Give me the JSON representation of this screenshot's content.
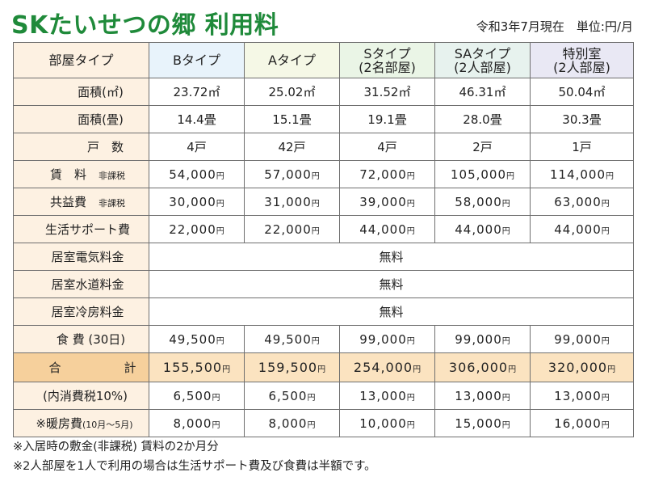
{
  "title": "SKたいせつの郷 利用料",
  "as_of": "令和3年7月現在　単位:円/月",
  "columns": [
    "部屋タイプ",
    "Bタイプ",
    "Aタイプ",
    "Sタイプ\n(2名部屋)",
    "SAタイプ\n(2人部屋)",
    "特別室\n(2人部屋)"
  ],
  "header": {
    "label": "部屋タイプ",
    "b": "Bタイプ",
    "a": "Aタイプ",
    "s_line1": "Sタイプ",
    "s_line2": "(2名部屋)",
    "sa_line1": "SAタイプ",
    "sa_line2": "(2人部屋)",
    "sp_line1": "特別室",
    "sp_line2": "(2人部屋)"
  },
  "rows": {
    "area_m2": {
      "label": "面積(㎡)",
      "values": [
        "23.72㎡",
        "25.02㎡",
        "31.52㎡",
        "46.31㎡",
        "50.04㎡"
      ]
    },
    "area_jo": {
      "label": "面積(畳)",
      "values": [
        "14.4畳",
        "15.1畳",
        "19.1畳",
        "28.0畳",
        "30.3畳"
      ]
    },
    "units": {
      "label": "戸　数",
      "values": [
        "4戸",
        "42戸",
        "4戸",
        "2戸",
        "1戸"
      ]
    },
    "rent": {
      "label": "賃　料",
      "tax": "非課税",
      "values": [
        "54,000",
        "57,000",
        "72,000",
        "105,000",
        "114,000"
      ]
    },
    "common": {
      "label": "共益費",
      "tax": "非課税",
      "values": [
        "30,000",
        "31,000",
        "39,000",
        "58,000",
        "63,000"
      ]
    },
    "support": {
      "label": "生活サポート費",
      "values": [
        "22,000",
        "22,000",
        "44,000",
        "44,000",
        "44,000"
      ]
    },
    "electric": {
      "label": "居室電気料金",
      "value": "無料"
    },
    "water": {
      "label": "居室水道料金",
      "value": "無料"
    },
    "cooling": {
      "label": "居室冷房料金",
      "value": "無料"
    },
    "meals": {
      "label": "食 費 (30日)",
      "values": [
        "49,500",
        "49,500",
        "99,000",
        "99,000",
        "99,000"
      ]
    },
    "total": {
      "label_left": "合",
      "label_right": "計",
      "values": [
        "155,500",
        "159,500",
        "254,000",
        "306,000",
        "320,000"
      ]
    },
    "consumption_tax": {
      "label": "(内消費税10%)",
      "values": [
        "6,500",
        "6,500",
        "13,000",
        "13,000",
        "13,000"
      ]
    },
    "heating": {
      "label": "※暖房費",
      "period": "(10月〜5月)",
      "values": [
        "8,000",
        "8,000",
        "10,000",
        "15,000",
        "16,000"
      ]
    }
  },
  "yen_unit": "円",
  "footnotes": [
    "※入居時の敷金(非課税) 賃料の2か月分",
    "※2人部屋を1人で利用の場合は生活サポート費及び食費は半額です。"
  ],
  "colors": {
    "title_green": "#1f8a3a",
    "label_bg": "#fdf1e2",
    "total_bg": "#fbe3c0"
  }
}
